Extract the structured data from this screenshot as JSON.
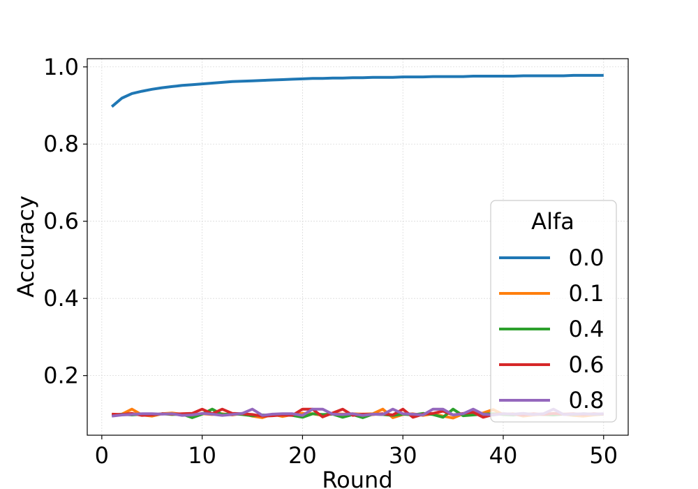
{
  "chart_data": {
    "type": "line",
    "title": "",
    "xlabel": "Round",
    "ylabel": "Accuracy",
    "xlim": [
      -1.45,
      52.45
    ],
    "ylim": [
      0.0455,
      1.0213
    ],
    "xticks": [
      0,
      10,
      20,
      30,
      40,
      50
    ],
    "xtick_labels": [
      "0",
      "10",
      "20",
      "30",
      "40",
      "50"
    ],
    "yticks": [
      0.2,
      0.4,
      0.6,
      0.8,
      1.0
    ],
    "ytick_labels": [
      "0.2",
      "0.4",
      "0.6",
      "0.8",
      "1.0"
    ],
    "grid": true,
    "legend": {
      "title": "Alfa",
      "position": "center-right"
    },
    "x": [
      1,
      2,
      3,
      4,
      5,
      6,
      7,
      8,
      9,
      10,
      11,
      12,
      13,
      14,
      15,
      16,
      17,
      18,
      19,
      20,
      21,
      22,
      23,
      24,
      25,
      26,
      27,
      28,
      29,
      30,
      31,
      32,
      33,
      34,
      35,
      36,
      37,
      38,
      39,
      40,
      41,
      42,
      43,
      44,
      45,
      46,
      47,
      48,
      49,
      50
    ],
    "series": [
      {
        "name": "0.0",
        "color": "#1f77b4",
        "values": [
          0.897,
          0.919,
          0.931,
          0.937,
          0.942,
          0.946,
          0.949,
          0.952,
          0.954,
          0.956,
          0.958,
          0.96,
          0.962,
          0.963,
          0.964,
          0.965,
          0.966,
          0.967,
          0.968,
          0.969,
          0.97,
          0.97,
          0.971,
          0.971,
          0.972,
          0.972,
          0.973,
          0.973,
          0.973,
          0.974,
          0.974,
          0.974,
          0.975,
          0.975,
          0.975,
          0.975,
          0.976,
          0.976,
          0.976,
          0.976,
          0.976,
          0.977,
          0.977,
          0.977,
          0.977,
          0.977,
          0.978,
          0.978,
          0.978,
          0.978
        ]
      },
      {
        "name": "0.1",
        "color": "#ff7f0e",
        "values": [
          0.098,
          0.1,
          0.113,
          0.098,
          0.095,
          0.101,
          0.103,
          0.1,
          0.098,
          0.101,
          0.099,
          0.101,
          0.098,
          0.102,
          0.095,
          0.091,
          0.1,
          0.094,
          0.099,
          0.102,
          0.101,
          0.097,
          0.102,
          0.1,
          0.101,
          0.1,
          0.101,
          0.113,
          0.091,
          0.099,
          0.101,
          0.097,
          0.101,
          0.095,
          0.09,
          0.101,
          0.1,
          0.103,
          0.112,
          0.099,
          0.101,
          0.095,
          0.098,
          0.1,
          0.101,
          0.1,
          0.097,
          0.095,
          0.098,
          0.1
        ]
      },
      {
        "name": "0.4",
        "color": "#2ca02c",
        "values": [
          0.097,
          0.1,
          0.098,
          0.1,
          0.098,
          0.101,
          0.099,
          0.1,
          0.091,
          0.1,
          0.113,
          0.099,
          0.101,
          0.099,
          0.096,
          0.098,
          0.097,
          0.1,
          0.097,
          0.092,
          0.101,
          0.099,
          0.1,
          0.092,
          0.099,
          0.091,
          0.1,
          0.099,
          0.097,
          0.1,
          0.098,
          0.102,
          0.099,
          0.092,
          0.113,
          0.096,
          0.098,
          0.1,
          0.101,
          0.099,
          0.098,
          0.101,
          0.1,
          0.099,
          0.098,
          0.1,
          0.099,
          0.101,
          0.1,
          0.1
        ]
      },
      {
        "name": "0.6",
        "color": "#d62728",
        "values": [
          0.1,
          0.099,
          0.102,
          0.097,
          0.098,
          0.101,
          0.1,
          0.101,
          0.102,
          0.113,
          0.101,
          0.113,
          0.102,
          0.101,
          0.099,
          0.095,
          0.096,
          0.098,
          0.097,
          0.113,
          0.113,
          0.093,
          0.103,
          0.113,
          0.097,
          0.1,
          0.099,
          0.101,
          0.098,
          0.113,
          0.092,
          0.1,
          0.102,
          0.108,
          0.098,
          0.102,
          0.105,
          0.092,
          0.099,
          0.101,
          0.1,
          0.098,
          0.101,
          0.099,
          0.102,
          0.1,
          0.101,
          0.099,
          0.101,
          0.1
        ]
      },
      {
        "name": "0.8",
        "color": "#9467bd",
        "values": [
          0.095,
          0.098,
          0.099,
          0.101,
          0.101,
          0.1,
          0.101,
          0.097,
          0.098,
          0.102,
          0.1,
          0.097,
          0.099,
          0.102,
          0.113,
          0.097,
          0.1,
          0.101,
          0.101,
          0.097,
          0.113,
          0.113,
          0.1,
          0.099,
          0.101,
          0.097,
          0.1,
          0.099,
          0.113,
          0.101,
          0.1,
          0.098,
          0.113,
          0.113,
          0.098,
          0.101,
          0.113,
          0.1,
          0.098,
          0.101,
          0.1,
          0.102,
          0.099,
          0.101,
          0.113,
          0.099,
          0.1,
          0.101,
          0.1,
          0.101
        ]
      }
    ]
  }
}
